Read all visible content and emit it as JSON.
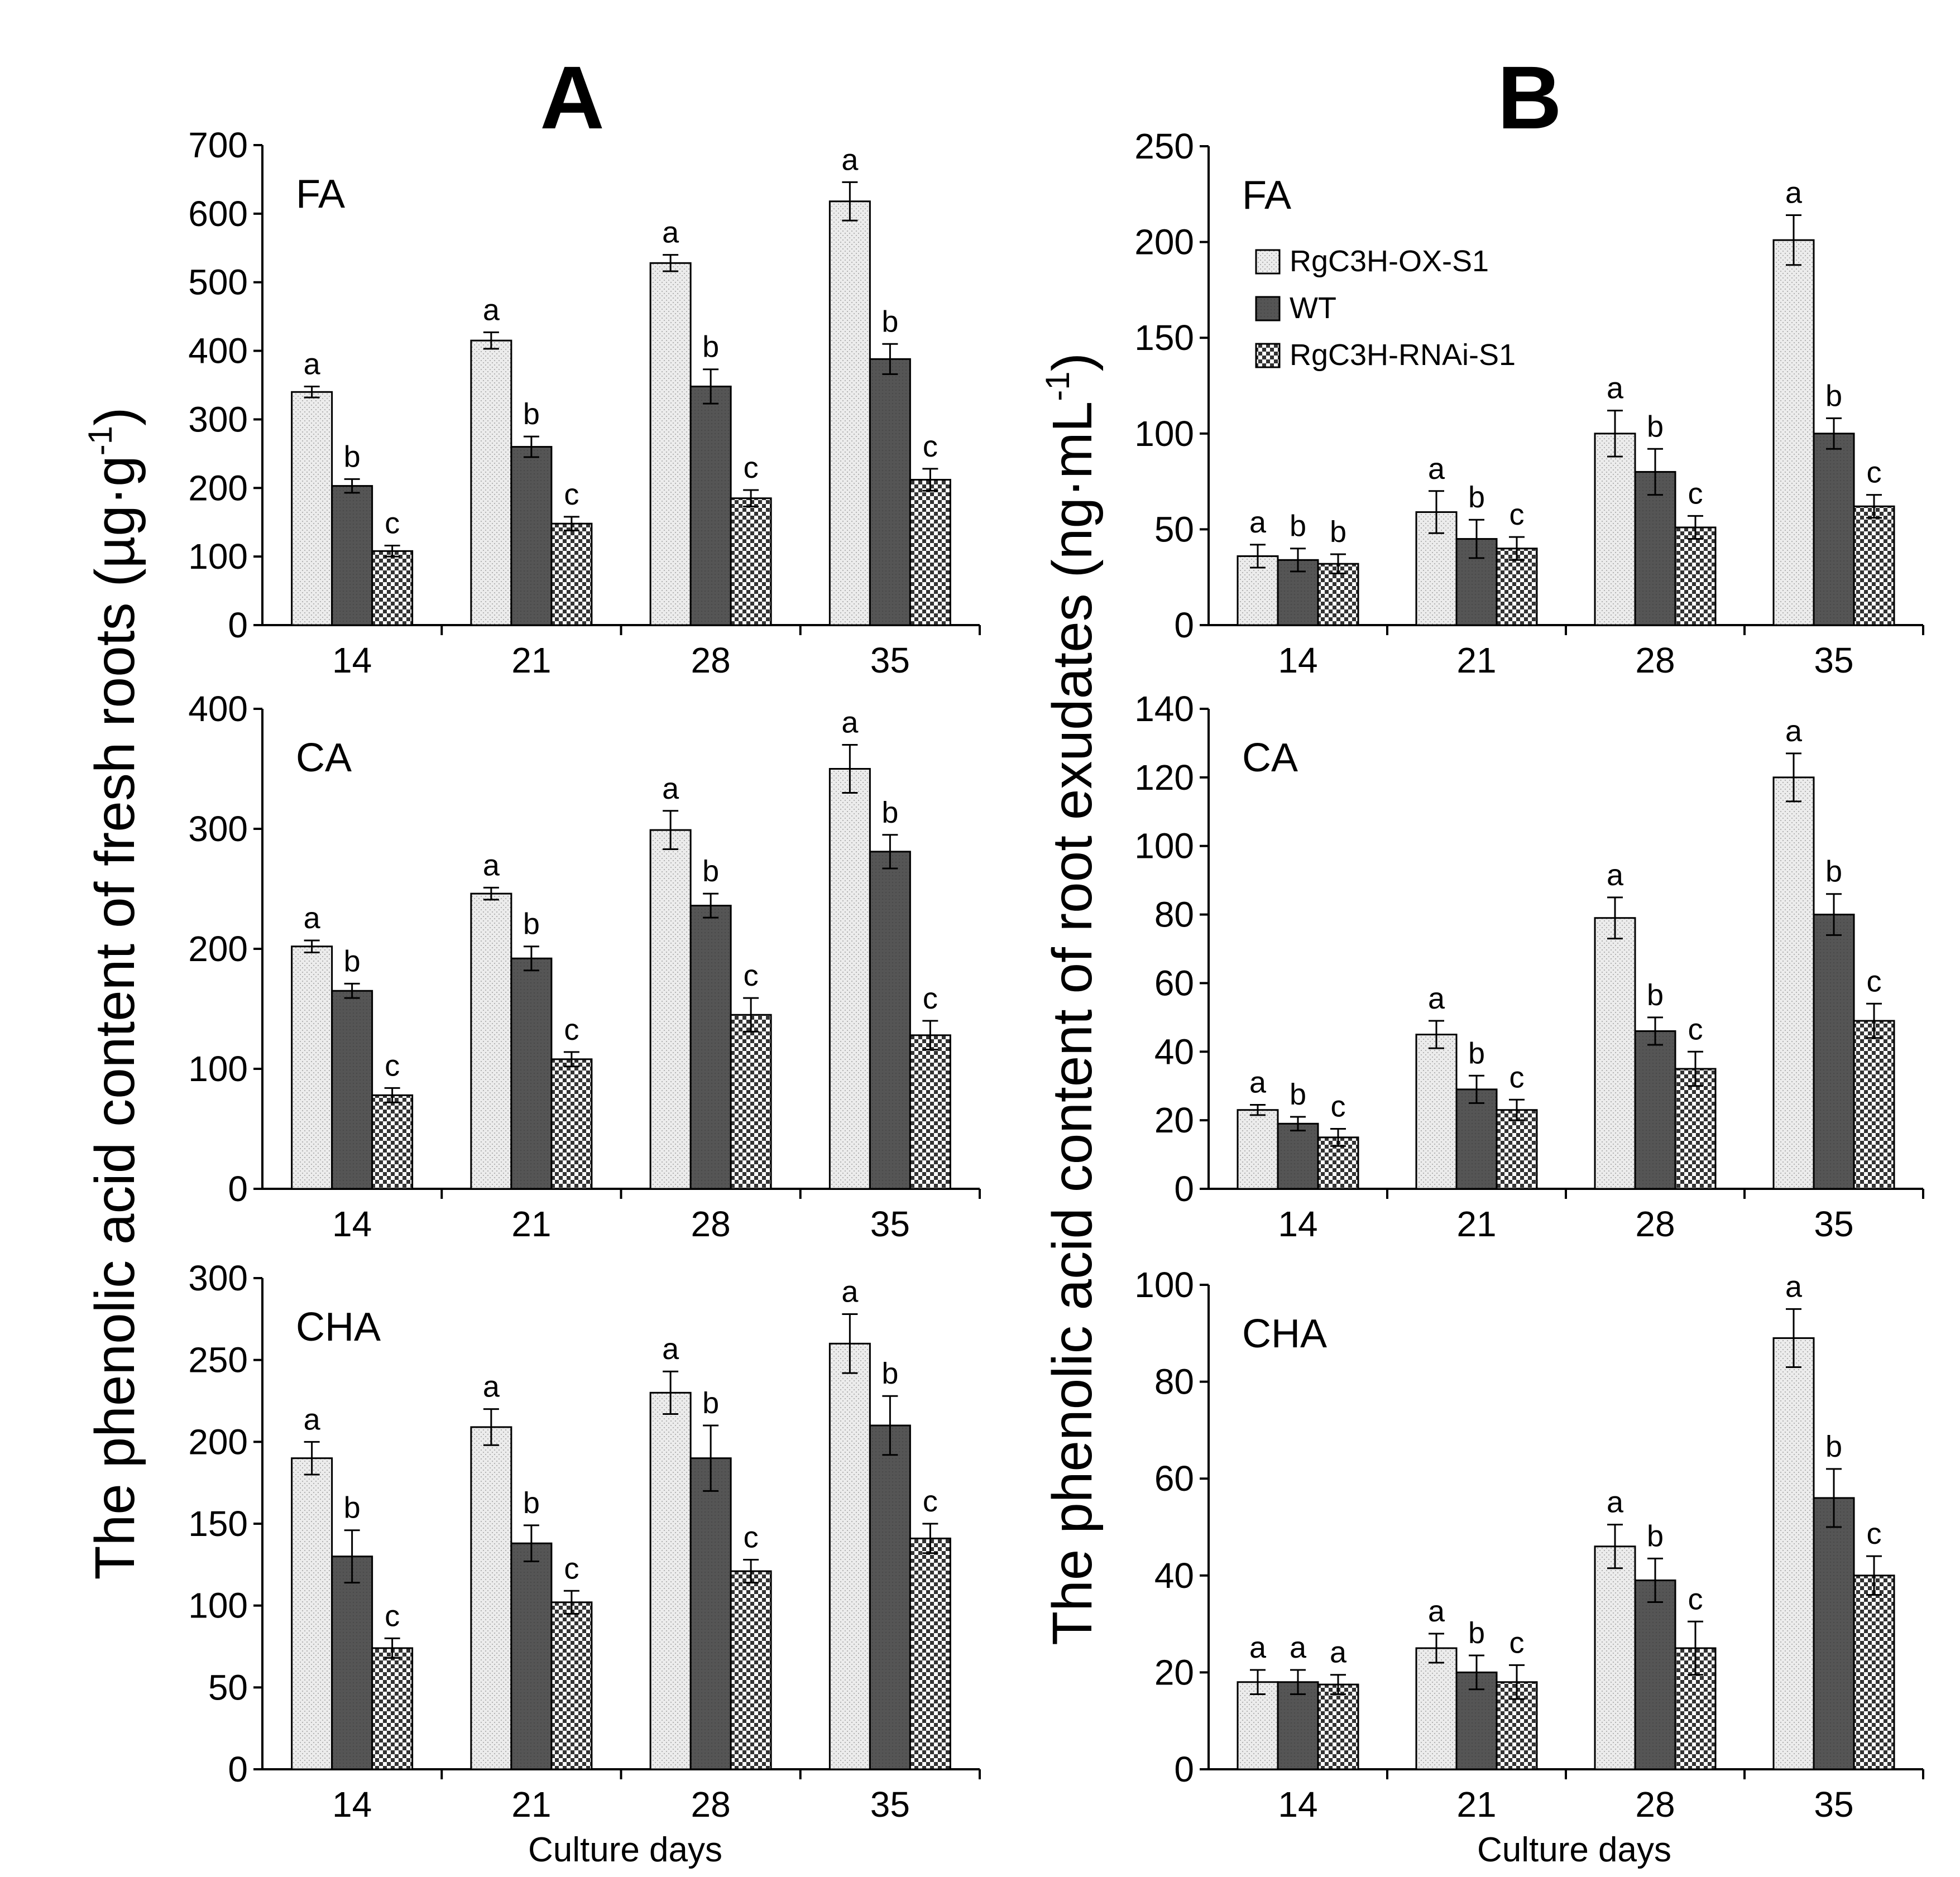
{
  "figure": {
    "panel_labels": [
      "A",
      "B"
    ],
    "ylabel_A": "The phenolic acid content of fresh roots (µg·g",
    "ylabel_A_sup": "-1",
    "ylabel_A_close": ")",
    "ylabel_B": "The phenolic acid content of root exudates (ng·mL",
    "ylabel_B_sup": "-1",
    "ylabel_B_close": ")",
    "xlabel": "Culture days",
    "legend": [
      {
        "name": "RgC3H-OX-S1",
        "pattern": "dots"
      },
      {
        "name": "WT",
        "pattern": "dark"
      },
      {
        "name": "RgC3H-RNAi-S1",
        "pattern": "check"
      }
    ],
    "colors": {
      "light": "#ececec",
      "dark": "#555555",
      "axis": "#000000"
    }
  },
  "chart_data": [
    {
      "type": "bar",
      "panel": "A",
      "title": "FA",
      "categories": [
        "14",
        "21",
        "28",
        "35"
      ],
      "ylim": [
        0,
        700
      ],
      "yticks": [
        0,
        100,
        200,
        300,
        400,
        500,
        600,
        700
      ],
      "series": [
        {
          "name": "RgC3H-OX-S1",
          "values": [
            340,
            415,
            528,
            618
          ],
          "errors": [
            8,
            12,
            12,
            28
          ],
          "letters": [
            "a",
            "a",
            "a",
            "a"
          ]
        },
        {
          "name": "WT",
          "values": [
            203,
            260,
            348,
            388
          ],
          "errors": [
            10,
            15,
            25,
            22
          ],
          "letters": [
            "b",
            "b",
            "b",
            "b"
          ]
        },
        {
          "name": "RgC3H-RNAi-S1",
          "values": [
            108,
            148,
            185,
            212
          ],
          "errors": [
            8,
            10,
            12,
            16
          ],
          "letters": [
            "c",
            "c",
            "c",
            "c"
          ]
        }
      ]
    },
    {
      "type": "bar",
      "panel": "A",
      "title": "CA",
      "categories": [
        "14",
        "21",
        "28",
        "35"
      ],
      "ylim": [
        0,
        400
      ],
      "yticks": [
        0,
        100,
        200,
        300,
        400
      ],
      "series": [
        {
          "name": "RgC3H-OX-S1",
          "values": [
            202,
            246,
            299,
            350
          ],
          "errors": [
            5,
            5,
            16,
            20
          ],
          "letters": [
            "a",
            "a",
            "a",
            "a"
          ]
        },
        {
          "name": "WT",
          "values": [
            165,
            192,
            236,
            281
          ],
          "errors": [
            6,
            10,
            10,
            14
          ],
          "letters": [
            "b",
            "b",
            "b",
            "b"
          ]
        },
        {
          "name": "RgC3H-RNAi-S1",
          "values": [
            78,
            108,
            145,
            128
          ],
          "errors": [
            6,
            6,
            14,
            12
          ],
          "letters": [
            "c",
            "c",
            "c",
            "c"
          ]
        }
      ]
    },
    {
      "type": "bar",
      "panel": "A",
      "title": "CHA",
      "categories": [
        "14",
        "21",
        "28",
        "35"
      ],
      "ylim": [
        0,
        300
      ],
      "yticks": [
        0,
        50,
        100,
        150,
        200,
        250,
        300
      ],
      "series": [
        {
          "name": "RgC3H-OX-S1",
          "values": [
            190,
            209,
            230,
            260
          ],
          "errors": [
            10,
            11,
            13,
            18
          ],
          "letters": [
            "a",
            "a",
            "a",
            "a"
          ]
        },
        {
          "name": "WT",
          "values": [
            130,
            138,
            190,
            210
          ],
          "errors": [
            16,
            11,
            20,
            18
          ],
          "letters": [
            "b",
            "b",
            "b",
            "b"
          ]
        },
        {
          "name": "RgC3H-RNAi-S1",
          "values": [
            74,
            102,
            121,
            141
          ],
          "errors": [
            6,
            7,
            7,
            9
          ],
          "letters": [
            "c",
            "c",
            "c",
            "c"
          ]
        }
      ]
    },
    {
      "type": "bar",
      "panel": "B",
      "title": "FA",
      "categories": [
        "14",
        "21",
        "28",
        "35"
      ],
      "ylim": [
        0,
        250
      ],
      "yticks": [
        0,
        50,
        100,
        150,
        200,
        250
      ],
      "series": [
        {
          "name": "RgC3H-OX-S1",
          "values": [
            36,
            59,
            100,
            201
          ],
          "errors": [
            6,
            11,
            12,
            13
          ],
          "letters": [
            "a",
            "a",
            "a",
            "a"
          ]
        },
        {
          "name": "WT",
          "values": [
            34,
            45,
            80,
            100
          ],
          "errors": [
            6,
            10,
            12,
            8
          ],
          "letters": [
            "b",
            "b",
            "b",
            "b"
          ]
        },
        {
          "name": "RgC3H-RNAi-S1",
          "values": [
            32,
            40,
            51,
            62
          ],
          "errors": [
            5,
            6,
            6,
            6
          ],
          "letters": [
            "b",
            "c",
            "c",
            "c"
          ]
        }
      ]
    },
    {
      "type": "bar",
      "panel": "B",
      "title": "CA",
      "categories": [
        "14",
        "21",
        "28",
        "35"
      ],
      "ylim": [
        0,
        140
      ],
      "yticks": [
        0,
        20,
        40,
        60,
        80,
        100,
        120,
        140
      ],
      "series": [
        {
          "name": "RgC3H-OX-S1",
          "values": [
            23,
            45,
            79,
            120
          ],
          "errors": [
            1.5,
            4,
            6,
            7
          ],
          "letters": [
            "a",
            "a",
            "a",
            "a"
          ]
        },
        {
          "name": "WT",
          "values": [
            19,
            29,
            46,
            80
          ],
          "errors": [
            2,
            4,
            4,
            6
          ],
          "letters": [
            "b",
            "b",
            "b",
            "b"
          ]
        },
        {
          "name": "RgC3H-RNAi-S1",
          "values": [
            15,
            23,
            35,
            49
          ],
          "errors": [
            2.5,
            3,
            5,
            5
          ],
          "letters": [
            "c",
            "c",
            "c",
            "c"
          ]
        }
      ]
    },
    {
      "type": "bar",
      "panel": "B",
      "title": "CHA",
      "categories": [
        "14",
        "21",
        "28",
        "35"
      ],
      "ylim": [
        0,
        100
      ],
      "yticks": [
        0,
        20,
        40,
        60,
        80,
        100
      ],
      "series": [
        {
          "name": "RgC3H-OX-S1",
          "values": [
            18,
            25,
            46,
            89
          ],
          "errors": [
            2.5,
            3,
            4.5,
            6
          ],
          "letters": [
            "a",
            "a",
            "a",
            "a"
          ]
        },
        {
          "name": "WT",
          "values": [
            18,
            20,
            39,
            56
          ],
          "errors": [
            2.5,
            3.5,
            4.5,
            6
          ],
          "letters": [
            "a",
            "b",
            "b",
            "b"
          ]
        },
        {
          "name": "RgC3H-RNAi-S1",
          "values": [
            17.5,
            18,
            25,
            40
          ],
          "errors": [
            2,
            3.5,
            5.5,
            4
          ],
          "letters": [
            "a",
            "c",
            "c",
            "c"
          ]
        }
      ]
    }
  ]
}
